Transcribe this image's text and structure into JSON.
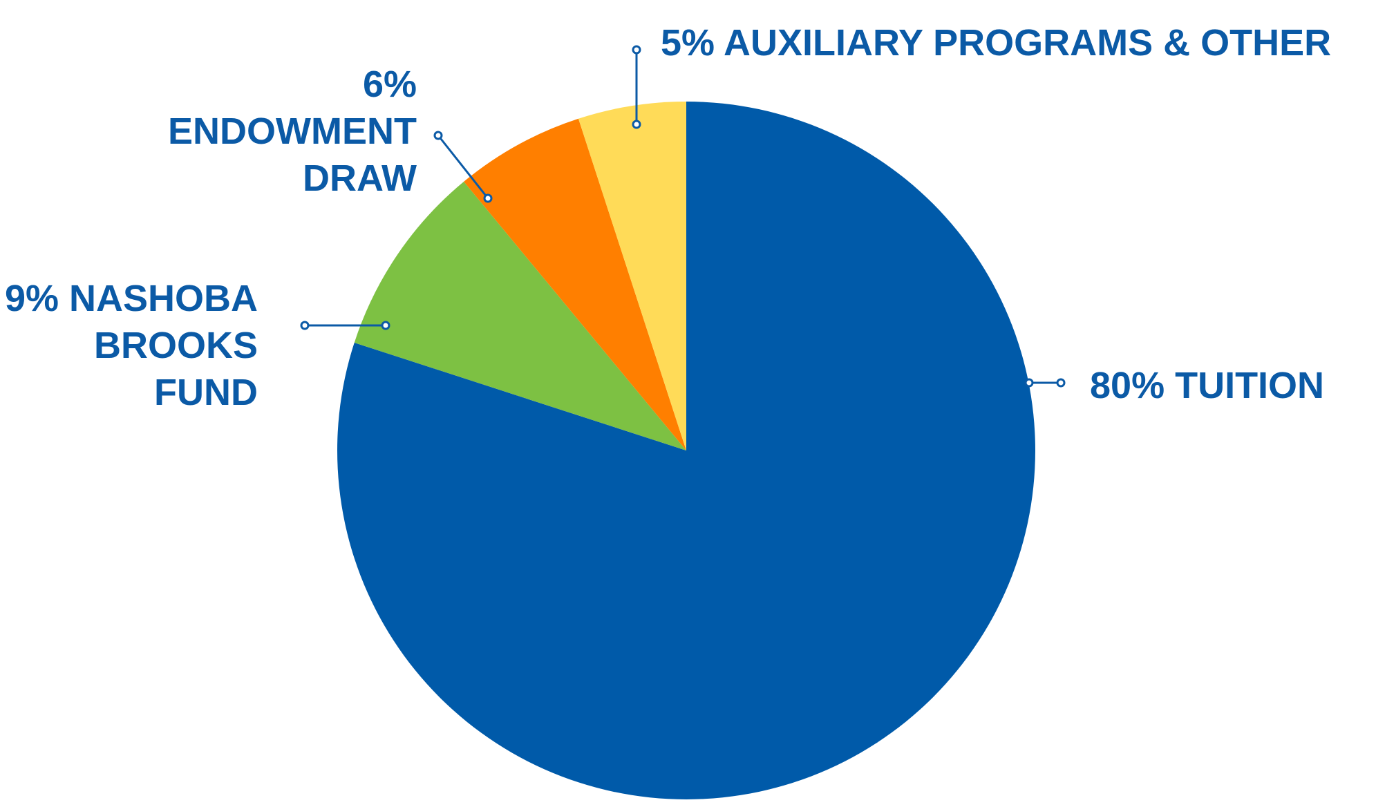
{
  "chart_data": {
    "type": "pie",
    "start": "12 o'clock",
    "direction": "clockwise",
    "slices": [
      {
        "label_lines": [
          "80% TUITION"
        ],
        "value": 80,
        "color": "#005aa9"
      },
      {
        "label_lines": [
          "9% NASHOBA",
          "BROOKS",
          "FUND"
        ],
        "value": 9,
        "color": "#7dc143"
      },
      {
        "label_lines": [
          "6%",
          "ENDOWMENT",
          "DRAW"
        ],
        "value": 6,
        "color": "#ff7f00"
      },
      {
        "label_lines": [
          "5% AUXILIARY PROGRAMS & OTHER"
        ],
        "value": 5,
        "color": "#ffdb58"
      }
    ],
    "label_color": "#0b5aa6"
  }
}
